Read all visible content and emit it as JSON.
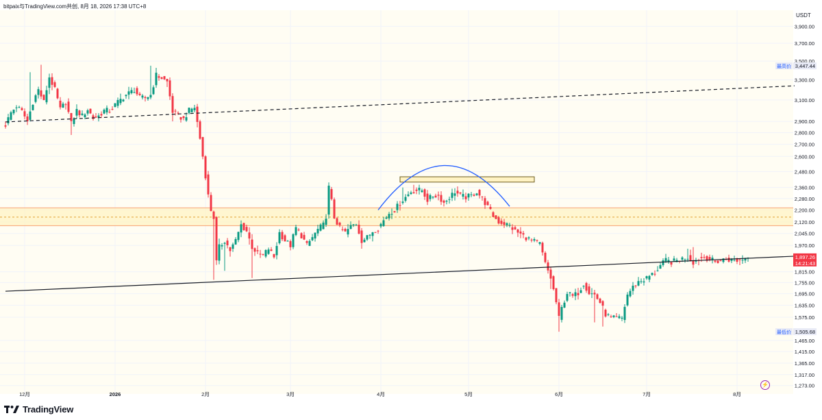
{
  "header": {
    "caption": "bitpaix与TradingView.com共创, 8月 18, 2026 17:38 UTC+8"
  },
  "brand": {
    "name": "TradingView"
  },
  "chart_data": {
    "type": "candlestick",
    "title": "",
    "currency_unit": "USDT",
    "y_scale": "log",
    "ylim": [
      1240,
      4100
    ],
    "y_ticks": [
      {
        "v": 3900,
        "t": "3,900.00"
      },
      {
        "v": 3700,
        "t": "3,700.00"
      },
      {
        "v": 3500,
        "t": "3,500.00"
      },
      {
        "v": 3300,
        "t": "3,300.00"
      },
      {
        "v": 3100,
        "t": "3,100.00"
      },
      {
        "v": 2900,
        "t": "2,900.00"
      },
      {
        "v": 2800,
        "t": "2,800.00"
      },
      {
        "v": 2700,
        "t": "2,700.00"
      },
      {
        "v": 2600,
        "t": "2,600.00"
      },
      {
        "v": 2480,
        "t": "2,480.00"
      },
      {
        "v": 2360,
        "t": "2,360.00"
      },
      {
        "v": 2280,
        "t": "2,280.00"
      },
      {
        "v": 2200,
        "t": "2,200.00"
      },
      {
        "v": 2120,
        "t": "2,120.00"
      },
      {
        "v": 2045,
        "t": "2,045.00"
      },
      {
        "v": 1970,
        "t": "1,970.00"
      },
      {
        "v": 1815,
        "t": "1,815.00"
      },
      {
        "v": 1755,
        "t": "1,755.00"
      },
      {
        "v": 1695,
        "t": "1,695.00"
      },
      {
        "v": 1635,
        "t": "1,635.00"
      },
      {
        "v": 1575,
        "t": "1,575.00"
      },
      {
        "v": 1465,
        "t": "1,465.00"
      },
      {
        "v": 1415,
        "t": "1,415.00"
      },
      {
        "v": 1365,
        "t": "1,365.00"
      },
      {
        "v": 1317,
        "t": "1,317.00"
      },
      {
        "v": 1273,
        "t": "1,273.00"
      }
    ],
    "x_ticks": [
      {
        "i": 7,
        "t": "12月"
      },
      {
        "i": 40,
        "t": "2026",
        "bold": true
      },
      {
        "i": 73,
        "t": "2月"
      },
      {
        "i": 104,
        "t": "3月"
      },
      {
        "i": 137,
        "t": "4月"
      },
      {
        "i": 169,
        "t": "5月"
      },
      {
        "i": 202,
        "t": "6月"
      },
      {
        "i": 234,
        "t": "7月"
      },
      {
        "i": 267,
        "t": "8月"
      }
    ],
    "markers": {
      "high": {
        "label": "最高价",
        "value": 3447.44,
        "text": "3,447.44"
      },
      "low": {
        "label": "最低价",
        "value": 1505.68,
        "text": "1,505.68"
      },
      "last": {
        "value": 1897.26,
        "text": "1,897.26",
        "countdown": "14:21:43",
        "color": "#f23645"
      }
    },
    "zone": {
      "top": 2215,
      "bottom": 2095,
      "mid": 2152
    },
    "colors": {
      "up": "#089981",
      "down": "#f23645",
      "grid": "#f0f3fa",
      "zone": "#fff3c4",
      "zone_line": "#f7a072",
      "arc": "#2962ff",
      "axis_text": "#131722"
    },
    "anchors": [
      [
        0,
        2870
      ],
      [
        2,
        2980
      ],
      [
        4,
        3040
      ],
      [
        6,
        2990
      ],
      [
        8,
        2900
      ],
      [
        10,
        3080
      ],
      [
        12,
        3200
      ],
      [
        14,
        3080
      ],
      [
        16,
        3330
      ],
      [
        18,
        3200
      ],
      [
        20,
        3010
      ],
      [
        22,
        3080
      ],
      [
        24,
        2880
      ],
      [
        26,
        3000
      ],
      [
        28,
        2950
      ],
      [
        30,
        3010
      ],
      [
        32,
        2930
      ],
      [
        34,
        2950
      ],
      [
        36,
        3000
      ],
      [
        38,
        3000
      ],
      [
        41,
        3080
      ],
      [
        44,
        3150
      ],
      [
        47,
        3200
      ],
      [
        49,
        3120
      ],
      [
        51,
        3120
      ],
      [
        53,
        3150
      ],
      [
        55,
        3350
      ],
      [
        57,
        3320
      ],
      [
        59,
        3280
      ],
      [
        61,
        2990
      ],
      [
        63,
        2950
      ],
      [
        65,
        2920
      ],
      [
        67,
        3000
      ],
      [
        69,
        3030
      ],
      [
        71,
        2750
      ],
      [
        73,
        2450
      ],
      [
        74,
        2300
      ],
      [
        75,
        2200
      ],
      [
        76,
        2150
      ],
      [
        77,
        1870
      ],
      [
        78,
        1960
      ],
      [
        80,
        2000
      ],
      [
        82,
        1940
      ],
      [
        84,
        2000
      ],
      [
        86,
        2100
      ],
      [
        88,
        2060
      ],
      [
        90,
        1960
      ],
      [
        92,
        1920
      ],
      [
        94,
        1910
      ],
      [
        96,
        1950
      ],
      [
        98,
        1900
      ],
      [
        100,
        2050
      ],
      [
        102,
        2000
      ],
      [
        104,
        1970
      ],
      [
        106,
        2080
      ],
      [
        108,
        2030
      ],
      [
        110,
        1970
      ],
      [
        112,
        2020
      ],
      [
        114,
        2070
      ],
      [
        116,
        2100
      ],
      [
        117,
        2160
      ],
      [
        118,
        2360
      ],
      [
        119,
        2260
      ],
      [
        120,
        2150
      ],
      [
        122,
        2080
      ],
      [
        124,
        2050
      ],
      [
        126,
        2090
      ],
      [
        128,
        2110
      ],
      [
        130,
        2000
      ],
      [
        132,
        2020
      ],
      [
        134,
        2060
      ],
      [
        136,
        2080
      ],
      [
        138,
        2130
      ],
      [
        140,
        2180
      ],
      [
        142,
        2200
      ],
      [
        144,
        2250
      ],
      [
        146,
        2290
      ],
      [
        148,
        2330
      ],
      [
        150,
        2340
      ],
      [
        152,
        2340
      ],
      [
        154,
        2270
      ],
      [
        156,
        2300
      ],
      [
        158,
        2300
      ],
      [
        160,
        2250
      ],
      [
        162,
        2290
      ],
      [
        164,
        2330
      ],
      [
        166,
        2300
      ],
      [
        168,
        2290
      ],
      [
        170,
        2300
      ],
      [
        172,
        2330
      ],
      [
        174,
        2280
      ],
      [
        176,
        2220
      ],
      [
        178,
        2160
      ],
      [
        180,
        2120
      ],
      [
        182,
        2110
      ],
      [
        184,
        2095
      ],
      [
        186,
        2060
      ],
      [
        188,
        2040
      ],
      [
        190,
        2020
      ],
      [
        192,
        2000
      ],
      [
        195,
        1980
      ],
      [
        197,
        1860
      ],
      [
        199,
        1780
      ],
      [
        201,
        1650
      ],
      [
        202,
        1570
      ],
      [
        203,
        1620
      ],
      [
        205,
        1700
      ],
      [
        207,
        1680
      ],
      [
        209,
        1700
      ],
      [
        211,
        1750
      ],
      [
        213,
        1700
      ],
      [
        215,
        1690
      ],
      [
        217,
        1650
      ],
      [
        219,
        1590
      ],
      [
        221,
        1570
      ],
      [
        223,
        1570
      ],
      [
        225,
        1570
      ],
      [
        227,
        1690
      ],
      [
        229,
        1730
      ],
      [
        231,
        1760
      ],
      [
        233,
        1770
      ],
      [
        235,
        1790
      ],
      [
        237,
        1810
      ],
      [
        239,
        1850
      ],
      [
        241,
        1880
      ],
      [
        243,
        1870
      ],
      [
        245,
        1880
      ],
      [
        247,
        1890
      ],
      [
        249,
        1900
      ],
      [
        251,
        1870
      ],
      [
        253,
        1890
      ],
      [
        255,
        1900
      ],
      [
        257,
        1890
      ],
      [
        259,
        1870
      ],
      [
        261,
        1880
      ],
      [
        263,
        1890
      ],
      [
        265,
        1880
      ],
      [
        267,
        1880
      ],
      [
        269,
        1890
      ],
      [
        271,
        1897
      ]
    ],
    "spikes": [
      [
        9,
        3380
      ],
      [
        13,
        3460
      ],
      [
        24,
        2780
      ],
      [
        53,
        3450
      ],
      [
        61,
        2900
      ],
      [
        76,
        1770
      ],
      [
        80,
        1820
      ],
      [
        90,
        1780
      ],
      [
        118,
        2380
      ],
      [
        130,
        1950
      ],
      [
        145,
        2360
      ],
      [
        149,
        2380
      ],
      [
        158,
        2310
      ],
      [
        199,
        1720
      ],
      [
        202,
        1505.68
      ],
      [
        215,
        1550
      ],
      [
        218,
        1530
      ],
      [
        249,
        1950
      ],
      [
        251,
        1960
      ]
    ],
    "lines": [
      {
        "name": "rising-dashed",
        "style": "dashed",
        "i1": 0,
        "v1": 2895,
        "i2": 288,
        "v2": 3240
      },
      {
        "name": "rising-support",
        "style": "solid",
        "i1": 0,
        "v1": 1708,
        "i2": 288,
        "v2": 1905
      }
    ],
    "top_box": {
      "i1": 144,
      "i2": 193,
      "top": 2440,
      "bottom": 2400
    }
  }
}
